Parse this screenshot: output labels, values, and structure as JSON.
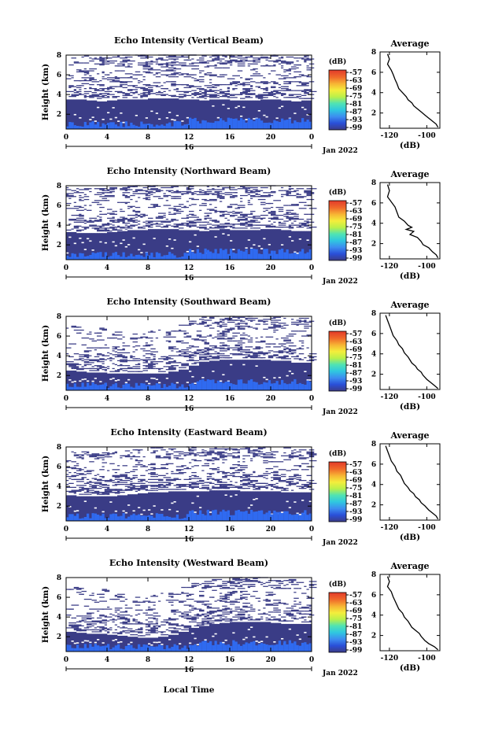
{
  "figure": {
    "xlabel": "Local Time",
    "day_label": "16",
    "date_label": "Jan 2022",
    "ylabel": "Height (km)",
    "colorbar_unit": "(dB)",
    "colorbar_ticks": [
      "-57",
      "-63",
      "-69",
      "-75",
      "-81",
      "-87",
      "-93",
      "-99"
    ],
    "colors": {
      "low_echo": "#3a3c86",
      "mid_echo": "#2f6af0",
      "colormap": [
        "#3b3b87",
        "#2a4fd8",
        "#3c8df0",
        "#2fc7e0",
        "#4fe3b4",
        "#b9f04a",
        "#f4ee3c",
        "#f7b534",
        "#f06a2a",
        "#e23a2a"
      ]
    }
  },
  "chart_data": [
    {
      "type": "heatmap",
      "title": "Echo Intensity (Vertical Beam)",
      "xlabel": "",
      "ylabel": "Height (km)",
      "x_range_hours": [
        0,
        24
      ],
      "y_range_km": [
        0.5,
        8
      ],
      "x_ticks": [
        "0",
        "4",
        "8",
        "12",
        "16",
        "20",
        "0"
      ],
      "y_ticks": [
        "2",
        "4",
        "6",
        "8"
      ],
      "colorbar": {
        "unit": "(dB)",
        "ticks": [
          -57,
          -63,
          -69,
          -75,
          -81,
          -87,
          -93,
          -99
        ]
      },
      "dense_echo_top_km": [
        3.5,
        3.5,
        3.4,
        3.3,
        3.4,
        3.5,
        3.5,
        3.5,
        3.6,
        3.6,
        3.6,
        3.5,
        3.5,
        3.4,
        3.5,
        3.5,
        3.4,
        3.4,
        3.4,
        3.5,
        3.5,
        3.4,
        3.3,
        3.4,
        3.4
      ],
      "sparse_echo_top_km": 8
    },
    {
      "type": "heatmap",
      "title": "Echo Intensity (Northward Beam)",
      "xlabel": "",
      "ylabel": "Height (km)",
      "x_range_hours": [
        0,
        24
      ],
      "y_range_km": [
        0.5,
        8
      ],
      "x_ticks": [
        "0",
        "4",
        "8",
        "12",
        "16",
        "20",
        "0"
      ],
      "y_ticks": [
        "2",
        "4",
        "6",
        "8"
      ],
      "colorbar": {
        "unit": "(dB)",
        "ticks": [
          -57,
          -63,
          -69,
          -75,
          -81,
          -87,
          -93,
          -99
        ]
      },
      "dense_echo_top_km": [
        3.3,
        3.2,
        3.2,
        3.2,
        3.3,
        3.4,
        3.5,
        3.5,
        3.6,
        3.6,
        3.6,
        3.5,
        3.5,
        3.4,
        3.5,
        3.6,
        3.5,
        3.5,
        3.5,
        3.6,
        3.6,
        3.5,
        3.4,
        3.4,
        3.4
      ],
      "sparse_echo_top_km": 8
    },
    {
      "type": "heatmap",
      "title": "Echo Intensity (Southward Beam)",
      "xlabel": "",
      "ylabel": "Height (km)",
      "x_range_hours": [
        0,
        24
      ],
      "y_range_km": [
        0.5,
        8
      ],
      "x_ticks": [
        "0",
        "4",
        "8",
        "12",
        "16",
        "20",
        "0"
      ],
      "y_ticks": [
        "2",
        "4",
        "6",
        "8"
      ],
      "colorbar": {
        "unit": "(dB)",
        "ticks": [
          -57,
          -63,
          -69,
          -75,
          -81,
          -87,
          -93,
          -99
        ]
      },
      "dense_echo_top_km": [
        2.5,
        2.4,
        2.3,
        2.3,
        2.2,
        2.2,
        2.2,
        2.2,
        2.2,
        2.2,
        2.4,
        2.6,
        3.0,
        3.4,
        3.5,
        3.6,
        3.6,
        3.6,
        3.6,
        3.6,
        3.5,
        3.5,
        3.3,
        3.3,
        3.3
      ],
      "sparse_echo_top_km": 8
    },
    {
      "type": "heatmap",
      "title": "Echo Intensity (Eastward Beam)",
      "xlabel": "",
      "ylabel": "Height (km)",
      "x_range_hours": [
        0,
        24
      ],
      "y_range_km": [
        0.5,
        8
      ],
      "x_ticks": [
        "0",
        "4",
        "8",
        "12",
        "16",
        "20",
        "0"
      ],
      "y_ticks": [
        "2",
        "4",
        "6",
        "8"
      ],
      "colorbar": {
        "unit": "(dB)",
        "ticks": [
          -57,
          -63,
          -69,
          -75,
          -81,
          -87,
          -93,
          -99
        ]
      },
      "dense_echo_top_km": [
        3.1,
        3.0,
        3.0,
        3.0,
        3.0,
        3.1,
        3.2,
        3.3,
        3.4,
        3.4,
        3.5,
        3.5,
        3.5,
        3.5,
        3.6,
        3.6,
        3.6,
        3.5,
        3.5,
        3.5,
        3.5,
        3.4,
        3.4,
        3.4,
        3.4
      ],
      "sparse_echo_top_km": 8
    },
    {
      "type": "heatmap",
      "title": "Echo Intensity (Westward Beam)",
      "xlabel": "Local Time",
      "ylabel": "Height (km)",
      "x_range_hours": [
        0,
        24
      ],
      "y_range_km": [
        0.5,
        8
      ],
      "x_ticks": [
        "0",
        "4",
        "8",
        "12",
        "16",
        "20",
        "0"
      ],
      "y_ticks": [
        "2",
        "4",
        "6",
        "8"
      ],
      "colorbar": {
        "unit": "(dB)",
        "ticks": [
          -57,
          -63,
          -69,
          -75,
          -81,
          -87,
          -93,
          -99
        ]
      },
      "dense_echo_top_km": [
        2.5,
        2.4,
        2.3,
        2.3,
        2.2,
        2.1,
        2.0,
        1.9,
        1.9,
        2.0,
        2.2,
        2.5,
        2.9,
        3.1,
        3.3,
        3.4,
        3.5,
        3.5,
        3.5,
        3.5,
        3.4,
        3.3,
        3.3,
        3.3,
        3.3
      ],
      "sparse_echo_top_km": 8
    },
    {
      "type": "line",
      "title": "Average",
      "xlabel": "(dB)",
      "ylabel": "",
      "xlim": [
        -125,
        -93
      ],
      "ylim": [
        0.5,
        8
      ],
      "x_ticks": [
        "-120",
        "-100"
      ],
      "y_ticks": [
        "2",
        "4",
        "6",
        "8"
      ],
      "series": [
        {
          "x": [
            -121,
            -120,
            -121,
            -119,
            -118,
            -117,
            -116,
            -115,
            -113,
            -111,
            -110,
            -108,
            -107,
            -105,
            -103,
            -101,
            -99,
            -97,
            -95,
            -94
          ],
          "y": [
            7.8,
            7.3,
            6.8,
            6.2,
            5.8,
            5.3,
            4.9,
            4.4,
            4.0,
            3.6,
            3.3,
            3.0,
            2.7,
            2.4,
            2.1,
            1.8,
            1.5,
            1.2,
            0.9,
            0.6
          ]
        }
      ]
    },
    {
      "type": "line",
      "title": "Average",
      "xlabel": "(dB)",
      "ylabel": "",
      "xlim": [
        -125,
        -93
      ],
      "ylim": [
        0.5,
        8
      ],
      "x_ticks": [
        "-120",
        "-100"
      ],
      "y_ticks": [
        "2",
        "4",
        "6",
        "8"
      ],
      "series": [
        {
          "x": [
            -121,
            -120,
            -121,
            -119,
            -117,
            -116,
            -115,
            -112,
            -110,
            -108,
            -111,
            -107,
            -109,
            -105,
            -103,
            -102,
            -99,
            -97,
            -95,
            -94
          ],
          "y": [
            7.8,
            7.2,
            6.6,
            6.1,
            5.6,
            5.1,
            4.6,
            4.2,
            3.8,
            3.6,
            3.4,
            3.2,
            2.9,
            2.6,
            2.2,
            1.9,
            1.6,
            1.2,
            0.9,
            0.6
          ]
        }
      ]
    },
    {
      "type": "line",
      "title": "Average",
      "xlabel": "(dB)",
      "ylabel": "",
      "xlim": [
        -125,
        -93
      ],
      "ylim": [
        0.5,
        8
      ],
      "x_ticks": [
        "-120",
        "-100"
      ],
      "y_ticks": [
        "2",
        "4",
        "6",
        "8"
      ],
      "series": [
        {
          "x": [
            -122,
            -121,
            -120,
            -119,
            -118,
            -116,
            -115,
            -113,
            -112,
            -110,
            -109,
            -108,
            -106,
            -105,
            -103,
            -102,
            -100,
            -98,
            -96,
            -94
          ],
          "y": [
            7.8,
            7.3,
            6.8,
            6.3,
            5.8,
            5.3,
            4.9,
            4.5,
            4.1,
            3.7,
            3.4,
            3.1,
            2.8,
            2.5,
            2.2,
            1.9,
            1.5,
            1.2,
            0.9,
            0.6
          ]
        }
      ]
    },
    {
      "type": "line",
      "title": "Average",
      "xlabel": "(dB)",
      "ylabel": "",
      "xlim": [
        -125,
        -93
      ],
      "ylim": [
        0.5,
        8
      ],
      "x_ticks": [
        "-120",
        "-100"
      ],
      "y_ticks": [
        "2",
        "4",
        "6",
        "8"
      ],
      "series": [
        {
          "x": [
            -122,
            -121,
            -120,
            -119,
            -117,
            -116,
            -114,
            -113,
            -112,
            -110,
            -109,
            -107,
            -106,
            -104,
            -103,
            -101,
            -99,
            -97,
            -95,
            -94
          ],
          "y": [
            7.8,
            7.3,
            6.8,
            6.3,
            5.8,
            5.3,
            4.9,
            4.5,
            4.1,
            3.7,
            3.4,
            3.1,
            2.8,
            2.5,
            2.2,
            1.9,
            1.5,
            1.2,
            0.9,
            0.6
          ]
        }
      ]
    },
    {
      "type": "line",
      "title": "Average",
      "xlabel": "(dB)",
      "ylabel": "",
      "xlim": [
        -125,
        -93
      ],
      "ylim": [
        0.5,
        8
      ],
      "x_ticks": [
        "-120",
        "-100"
      ],
      "y_ticks": [
        "2",
        "4",
        "6",
        "8"
      ],
      "series": [
        {
          "x": [
            -121,
            -120,
            -121,
            -119,
            -118,
            -117,
            -116,
            -115,
            -113,
            -112,
            -110,
            -109,
            -108,
            -106,
            -104,
            -103,
            -101,
            -99,
            -96,
            -94
          ],
          "y": [
            7.8,
            7.3,
            6.8,
            6.3,
            5.8,
            5.4,
            5.0,
            4.6,
            4.2,
            3.8,
            3.4,
            3.1,
            2.8,
            2.5,
            2.2,
            1.9,
            1.5,
            1.2,
            0.9,
            0.6
          ]
        }
      ]
    }
  ]
}
